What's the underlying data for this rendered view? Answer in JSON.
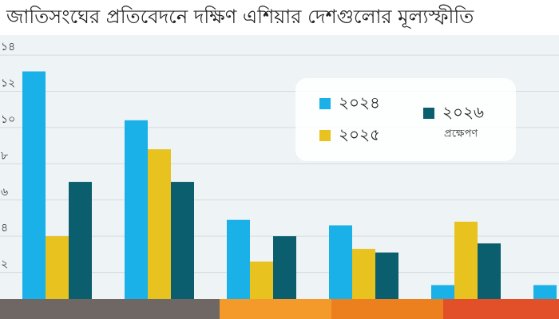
{
  "chart_data": {
    "type": "bar",
    "title": "জাতিসংঘের প্রতিবেদনে দক্ষিণ এশিয়ার দেশগুলোর মূল্যস্ফীতি",
    "categories": [
      null,
      null,
      null,
      null,
      null,
      null
    ],
    "series": [
      {
        "name": "২০২৪",
        "color": "#1ab0e8",
        "values": [
          13.1,
          10.4,
          4.9,
          4.6,
          1.3,
          1.3
        ]
      },
      {
        "name": "২০২৫",
        "color": "#e8c21e",
        "values": [
          4.0,
          8.8,
          2.6,
          3.3,
          4.8,
          null
        ]
      },
      {
        "name": "২০২৬",
        "color": "#0b5e6e",
        "values": [
          7.0,
          7.0,
          4.0,
          3.1,
          3.6,
          null
        ]
      }
    ],
    "annotation": "প্রক্ষেপণ",
    "ylim": [
      0,
      14.4
    ],
    "yticks": [
      {
        "value": 2,
        "label": "২"
      },
      {
        "value": 4,
        "label": "৪"
      },
      {
        "value": 6,
        "label": "৬"
      },
      {
        "value": 8,
        "label": "৮"
      },
      {
        "value": 10,
        "label": "১০"
      },
      {
        "value": 12,
        "label": "১২"
      },
      {
        "value": 14,
        "label": "১৪"
      }
    ],
    "grid": true
  }
}
